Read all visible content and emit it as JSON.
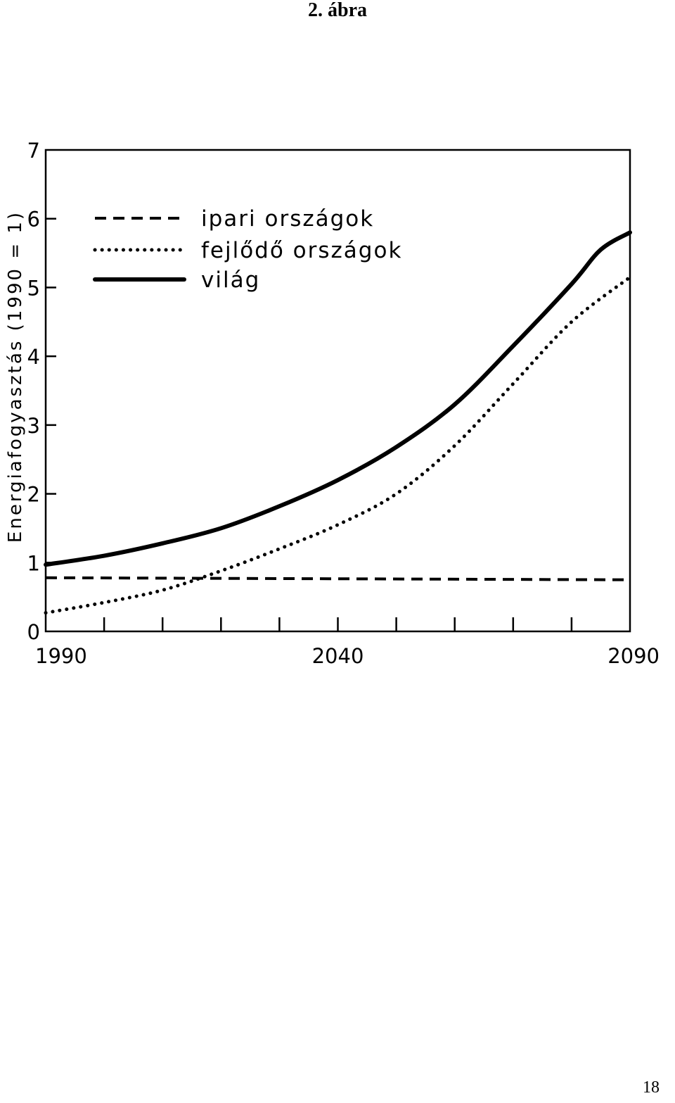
{
  "figure_title": "2. ábra",
  "page_number": "18",
  "chart_data": {
    "type": "line",
    "ylabel": "Energiafogyasztás (1990 = 1)",
    "xlabel": "",
    "xlim": [
      1990,
      2090
    ],
    "ylim": [
      0,
      7
    ],
    "x_tick_labels": [
      "1990",
      "2040",
      "2090"
    ],
    "x_minor_ticks": [
      2000,
      2010,
      2020,
      2030,
      2040,
      2050,
      2060,
      2070,
      2080
    ],
    "y_ticks": [
      0,
      1,
      2,
      3,
      4,
      5,
      6,
      7
    ],
    "grid": false,
    "legend_position": "top-left",
    "series": [
      {
        "name": "ipari országok",
        "style": "dashed",
        "x": [
          1990,
          2090
        ],
        "y": [
          0.78,
          0.75
        ]
      },
      {
        "name": "fejlődő országok",
        "style": "dotted",
        "x": [
          1990,
          2000,
          2010,
          2020,
          2030,
          2040,
          2050,
          2060,
          2070,
          2080,
          2090
        ],
        "y": [
          0.27,
          0.42,
          0.6,
          0.88,
          1.2,
          1.55,
          2.0,
          2.7,
          3.6,
          4.5,
          5.15
        ]
      },
      {
        "name": "világ",
        "style": "solid",
        "x": [
          1990,
          2000,
          2010,
          2020,
          2030,
          2040,
          2050,
          2060,
          2070,
          2080,
          2085,
          2090
        ],
        "y": [
          0.97,
          1.1,
          1.28,
          1.5,
          1.82,
          2.2,
          2.68,
          3.3,
          4.15,
          5.05,
          5.55,
          5.8
        ]
      }
    ]
  }
}
